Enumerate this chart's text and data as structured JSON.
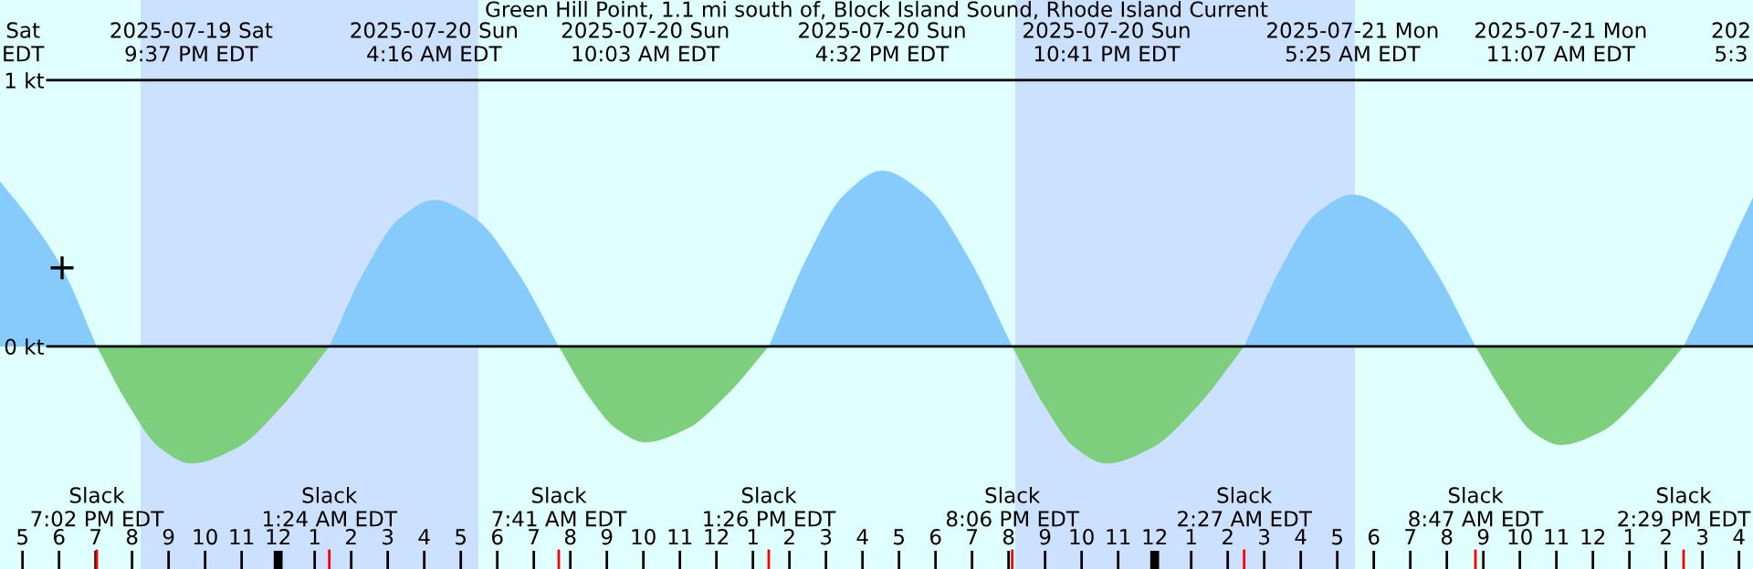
{
  "chart_data": {
    "type": "area",
    "title": "Green Hill Point, 1.1 mi south of, Block Island Sound, Rhode Island Current",
    "xlim": [
      "2025-07-19T16:23",
      "2025-07-21T16:23"
    ],
    "ylim": [
      -0.836,
      1.301
    ],
    "yticks": [
      {
        "value": 0,
        "label": "0 kt"
      },
      {
        "value": 1,
        "label": "1 kt"
      }
    ],
    "grid": "y",
    "xticks": [
      {
        "value": "2025-07-19T17:00",
        "label": "5"
      },
      {
        "value": "2025-07-19T18:00",
        "label": "6"
      },
      {
        "value": "2025-07-19T19:00",
        "label": "7"
      },
      {
        "value": "2025-07-19T20:00",
        "label": "8"
      },
      {
        "value": "2025-07-19T21:00",
        "label": "9"
      },
      {
        "value": "2025-07-19T22:00",
        "label": "10"
      },
      {
        "value": "2025-07-19T23:00",
        "label": "11"
      },
      {
        "value": "2025-07-20T00:00",
        "label": "12"
      },
      {
        "value": "2025-07-20T01:00",
        "label": "1"
      },
      {
        "value": "2025-07-20T02:00",
        "label": "2"
      },
      {
        "value": "2025-07-20T03:00",
        "label": "3"
      },
      {
        "value": "2025-07-20T04:00",
        "label": "4"
      },
      {
        "value": "2025-07-20T05:00",
        "label": "5"
      },
      {
        "value": "2025-07-20T06:00",
        "label": "6"
      },
      {
        "value": "2025-07-20T07:00",
        "label": "7"
      },
      {
        "value": "2025-07-20T08:00",
        "label": "8"
      },
      {
        "value": "2025-07-20T09:00",
        "label": "9"
      },
      {
        "value": "2025-07-20T10:00",
        "label": "10"
      },
      {
        "value": "2025-07-20T11:00",
        "label": "11"
      },
      {
        "value": "2025-07-20T12:00",
        "label": "12"
      },
      {
        "value": "2025-07-20T13:00",
        "label": "1"
      },
      {
        "value": "2025-07-20T14:00",
        "label": "2"
      },
      {
        "value": "2025-07-20T15:00",
        "label": "3"
      },
      {
        "value": "2025-07-20T16:00",
        "label": "4"
      },
      {
        "value": "2025-07-20T17:00",
        "label": "5"
      },
      {
        "value": "2025-07-20T18:00",
        "label": "6"
      },
      {
        "value": "2025-07-20T19:00",
        "label": "7"
      },
      {
        "value": "2025-07-20T20:00",
        "label": "8"
      },
      {
        "value": "2025-07-20T21:00",
        "label": "9"
      },
      {
        "value": "2025-07-20T22:00",
        "label": "10"
      },
      {
        "value": "2025-07-20T23:00",
        "label": "11"
      },
      {
        "value": "2025-07-21T00:00",
        "label": "12"
      },
      {
        "value": "2025-07-21T01:00",
        "label": "1"
      },
      {
        "value": "2025-07-21T02:00",
        "label": "2"
      },
      {
        "value": "2025-07-21T03:00",
        "label": "3"
      },
      {
        "value": "2025-07-21T04:00",
        "label": "4"
      },
      {
        "value": "2025-07-21T05:00",
        "label": "5"
      },
      {
        "value": "2025-07-21T06:00",
        "label": "6"
      },
      {
        "value": "2025-07-21T07:00",
        "label": "7"
      },
      {
        "value": "2025-07-21T08:00",
        "label": "8"
      },
      {
        "value": "2025-07-21T09:00",
        "label": "9"
      },
      {
        "value": "2025-07-21T10:00",
        "label": "10"
      },
      {
        "value": "2025-07-21T11:00",
        "label": "11"
      },
      {
        "value": "2025-07-21T12:00",
        "label": "12"
      },
      {
        "value": "2025-07-21T13:00",
        "label": "1"
      },
      {
        "value": "2025-07-21T14:00",
        "label": "2"
      },
      {
        "value": "2025-07-21T15:00",
        "label": "3"
      },
      {
        "value": "2025-07-21T16:00",
        "label": "4"
      }
    ],
    "bands": [
      {
        "axis": "x",
        "from": "2025-07-19T20:14",
        "to": "2025-07-20T05:29",
        "color": "#cce0ff"
      },
      {
        "axis": "x",
        "from": "2025-07-20T20:11",
        "to": "2025-07-21T05:29",
        "color": "#cce0ff"
      }
    ],
    "series": [
      {
        "color": "#87cbfd",
        "x": [
          "2025-07-19T16:23",
          "2025-07-19T17:15",
          "2025-07-19T18:05",
          "2025-07-19T19:02",
          "2025-07-19T21:37",
          "2025-07-20T01:24",
          "2025-07-20T02:21",
          "2025-07-20T03:19",
          "2025-07-20T04:16",
          "2025-07-20T05:24",
          "2025-07-20T06:33",
          "2025-07-20T07:41",
          "2025-07-20T10:03",
          "2025-07-20T13:26",
          "2025-07-20T14:28",
          "2025-07-20T15:30",
          "2025-07-20T16:32",
          "2025-07-20T17:43",
          "2025-07-20T18:55",
          "2025-07-20T20:06",
          "2025-07-20T22:41",
          "2025-07-21T02:27",
          "2025-07-21T03:26",
          "2025-07-21T04:26",
          "2025-07-21T05:25",
          "2025-07-21T06:32",
          "2025-07-21T07:40",
          "2025-07-21T08:47",
          "2025-07-21T11:07",
          "2025-07-21T14:29",
          "2025-07-21T15:15",
          "2025-07-21T15:50",
          "2025-07-21T16:23"
        ],
        "values": [
          0.62,
          0.47,
          0.295,
          0,
          null,
          0,
          0.28,
          0.48,
          0.55,
          0.48,
          0.28,
          0,
          null,
          0,
          0.33,
          0.57,
          0.66,
          0.57,
          0.33,
          0,
          null,
          0,
          0.29,
          0.5,
          0.57,
          0.5,
          0.29,
          0,
          null,
          0,
          0.22,
          0.4,
          0.56
        ]
      },
      {
        "color": "#7dcf7d",
        "x": [
          "2025-07-19T19:02",
          "2025-07-19T19:54",
          "2025-07-19T20:45",
          "2025-07-19T21:37",
          "2025-07-19T22:53",
          "2025-07-20T00:08",
          "2025-07-20T01:24",
          "2025-07-20T04:16",
          "2025-07-20T07:41",
          "2025-07-20T08:28",
          "2025-07-20T09:16",
          "2025-07-20T10:03",
          "2025-07-20T11:11",
          "2025-07-20T12:18",
          "2025-07-20T13:26",
          "2025-07-20T16:32",
          "2025-07-20T20:06",
          "2025-07-20T20:58",
          "2025-07-20T21:49",
          "2025-07-20T22:41",
          "2025-07-20T23:56",
          "2025-07-21T01:12",
          "2025-07-21T02:27",
          "2025-07-21T05:25",
          "2025-07-21T08:47",
          "2025-07-21T09:34",
          "2025-07-21T10:20",
          "2025-07-21T11:07",
          "2025-07-21T12:14",
          "2025-07-21T13:22",
          "2025-07-21T14:29"
        ],
        "values": [
          0,
          -0.22,
          -0.38,
          -0.44,
          -0.38,
          -0.22,
          0,
          null,
          0,
          -0.18,
          -0.31,
          -0.36,
          -0.31,
          -0.18,
          0,
          null,
          0,
          -0.22,
          -0.38,
          -0.44,
          -0.38,
          -0.22,
          0,
          null,
          0,
          -0.18,
          -0.32,
          -0.37,
          -0.32,
          -0.18,
          0
        ]
      },
      {
        "type": "scatter",
        "marker": "cross",
        "color": "#000000",
        "x": [
          "2025-07-19T18:05"
        ],
        "values": [
          0.295
        ]
      }
    ],
    "annotations": [
      "Sat\nEDT",
      "2025-07-19 Sat\n9:37 PM EDT",
      "2025-07-20 Sun\n4:16 AM EDT",
      "2025-07-20 Sun\n10:03 AM EDT",
      "2025-07-20 Sun\n4:32 PM EDT",
      "2025-07-20 Sun\n10:41 PM EDT",
      "2025-07-21 Mon\n5:25 AM EDT",
      "2025-07-21 Mon\n11:07 AM EDT",
      "202\n5:3",
      "Slack\n7:02 PM EDT",
      "Slack\n1:24 AM EDT",
      "Slack\n7:41 AM EDT",
      "Slack\n1:26 PM EDT",
      "Slack\n8:06 PM EDT",
      "Slack\n2:27 AM EDT",
      "Slack\n8:47 AM EDT",
      "Slack\n2:29 PM EDT"
    ]
  }
}
